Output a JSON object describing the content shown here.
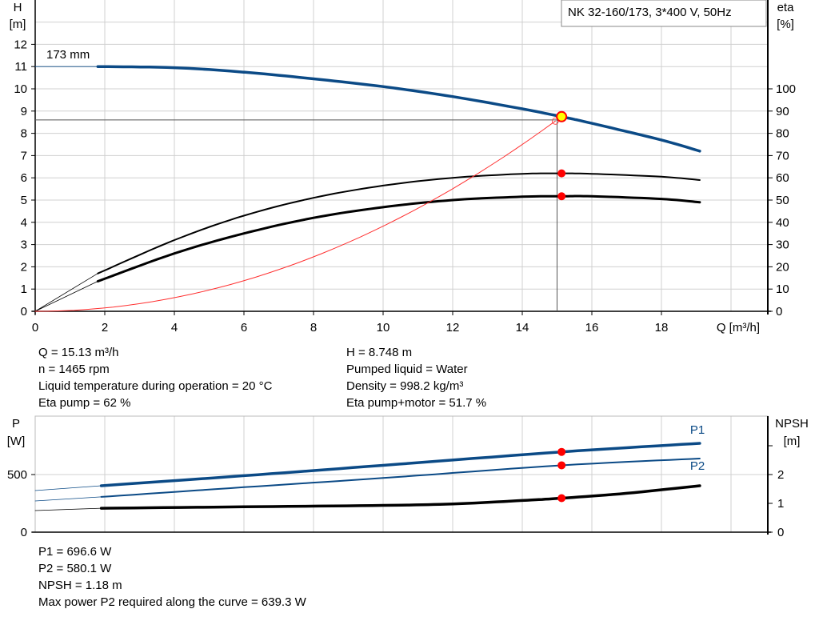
{
  "title_box": "NK 32-160/173, 3*400 V, 50Hz",
  "colors": {
    "head": "#0b4a86",
    "power": "#0b4a86",
    "eta": "#000000",
    "system": "#ff3030",
    "op_point": "#ff0000",
    "duty_point_fill": "#ffff00",
    "grid": "#d0d0d0"
  },
  "chart_data": [
    {
      "type": "line",
      "xlabel": "Q [m³/h]",
      "ylabel_left": [
        "H",
        "[m]"
      ],
      "ylabel_right": [
        "eta",
        "[%]"
      ],
      "xlim": [
        0,
        21
      ],
      "ylim_left": [
        0,
        14
      ],
      "ylim_right": [
        0,
        140
      ],
      "xticks": [
        0,
        2,
        4,
        6,
        8,
        10,
        12,
        14,
        16,
        18
      ],
      "yticks_left": [
        0,
        1,
        2,
        3,
        4,
        5,
        6,
        7,
        8,
        9,
        10,
        11,
        12
      ],
      "yticks_right": [
        0,
        10,
        20,
        30,
        40,
        50,
        60,
        70,
        80,
        90,
        100
      ],
      "grid": true,
      "curve_label": "173 mm",
      "duty_crosshair": {
        "Q": 15.0,
        "H": 8.6
      },
      "series": [
        {
          "key": "head",
          "axis": "left",
          "x": [
            1.8,
            4,
            6,
            8,
            10,
            12,
            14,
            15.13,
            16,
            18,
            19.1
          ],
          "y": [
            11.0,
            10.95,
            10.75,
            10.45,
            10.1,
            9.65,
            9.1,
            8.748,
            8.45,
            7.7,
            7.2
          ],
          "extension": {
            "x": [
              0,
              1.8
            ],
            "y": [
              11.0,
              11.0
            ]
          }
        },
        {
          "key": "eta_pump",
          "axis": "right",
          "x": [
            1.8,
            4,
            6,
            8,
            10,
            12,
            14,
            15.13,
            16,
            18,
            19.1
          ],
          "y": [
            17,
            32,
            43,
            51,
            56.5,
            60,
            61.8,
            62,
            61.8,
            60.5,
            59
          ],
          "extension": {
            "x": [
              0,
              1.8
            ],
            "y": [
              0,
              17
            ]
          }
        },
        {
          "key": "eta_pump_motor",
          "axis": "right",
          "x": [
            1.8,
            4,
            6,
            8,
            10,
            12,
            14,
            15.13,
            16,
            18,
            19.1
          ],
          "y": [
            13.5,
            26,
            35,
            42,
            46.8,
            50,
            51.5,
            51.7,
            51.7,
            50.5,
            49
          ],
          "extension": {
            "x": [
              0,
              1.8
            ],
            "y": [
              0,
              13.5
            ]
          }
        },
        {
          "key": "system_curve",
          "axis": "left",
          "quadratic_through": {
            "Q": 14.95,
            "H": 8.55
          }
        }
      ],
      "points": [
        {
          "x": 15.13,
          "y": 8.748,
          "axis": "left",
          "kind": "duty"
        },
        {
          "x": 15.13,
          "y": 62,
          "axis": "right",
          "kind": "op"
        },
        {
          "x": 15.13,
          "y": 51.7,
          "axis": "right",
          "kind": "op"
        }
      ]
    },
    {
      "type": "line",
      "ylabel_left": [
        "P",
        "[W]"
      ],
      "ylabel_right": [
        "NPSH",
        "[m]"
      ],
      "xlim": [
        0,
        21
      ],
      "ylim_left": [
        0,
        1000
      ],
      "ylim_right": [
        0,
        4
      ],
      "yticks_left": [
        0,
        500
      ],
      "yticks_right": [
        0,
        1,
        2,
        3
      ],
      "yticklabels_right": [
        "0",
        "1",
        "2",
        ""
      ],
      "grid": true,
      "series": [
        {
          "key": "p1",
          "name": "P1",
          "axis": "left",
          "x": [
            1.9,
            6,
            10,
            15.13,
            19.1
          ],
          "y": [
            403,
            490,
            580,
            696.6,
            771
          ],
          "extension": {
            "x": [
              0,
              1.9
            ],
            "y": [
              361,
              403
            ]
          }
        },
        {
          "key": "p2",
          "name": "P2",
          "axis": "left",
          "x": [
            1.9,
            6,
            10,
            15.13,
            19.1
          ],
          "y": [
            306,
            390,
            470,
            580.1,
            639
          ],
          "extension": {
            "x": [
              0,
              1.9
            ],
            "y": [
              271,
              306
            ]
          }
        },
        {
          "key": "npsh",
          "axis": "right",
          "x": [
            1.9,
            6,
            10,
            12,
            14,
            15.13,
            17,
            19.1
          ],
          "y": [
            0.83,
            0.88,
            0.93,
            0.98,
            1.1,
            1.18,
            1.35,
            1.61
          ],
          "extension": {
            "x": [
              0,
              1.9
            ],
            "y": [
              0.75,
              0.83
            ]
          }
        }
      ],
      "points": [
        {
          "x": 15.13,
          "y": 696.6,
          "axis": "left"
        },
        {
          "x": 15.13,
          "y": 580.1,
          "axis": "left"
        },
        {
          "x": 15.13,
          "y": 1.18,
          "axis": "right"
        }
      ]
    }
  ],
  "info_top": {
    "left": [
      "Q = 15.13 m³/h",
      "n = 1465 rpm",
      "Liquid temperature during operation = 20 °C",
      "Eta pump = 62 %"
    ],
    "right": [
      "H = 8.748 m",
      "Pumped liquid = Water",
      "Density = 998.2 kg/m³",
      "Eta pump+motor = 51.7 %"
    ]
  },
  "info_bottom": [
    "P1 = 696.6 W",
    "P2 = 580.1 W",
    "NPSH = 1.18 m",
    "Max power P2 required along the curve = 639.3 W"
  ]
}
